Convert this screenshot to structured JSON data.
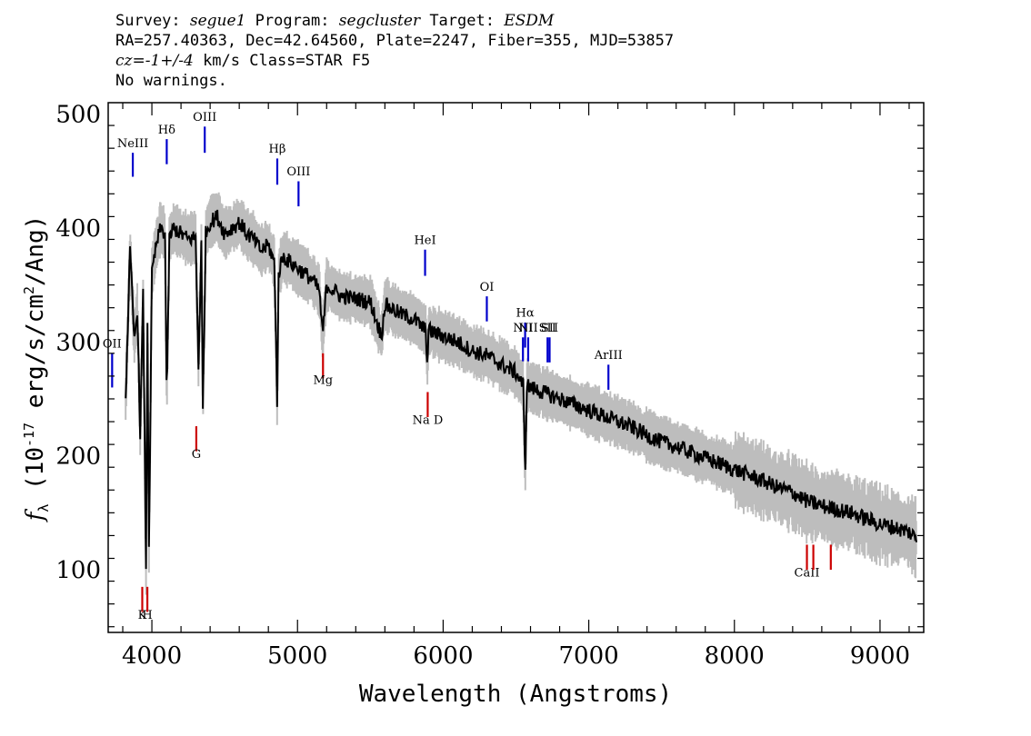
{
  "header": {
    "line1": {
      "survey_label": "Survey: ",
      "survey": "segue1",
      "program_label": " Program: ",
      "program": "segcluster",
      "target_label": " Target: ",
      "target": "ESDM"
    },
    "line2": "RA=257.40363, Dec=42.64560, Plate=2247, Fiber=355, MJD=53857",
    "line3": {
      "cz_value": "cz=-1+/-4",
      "rest": " km/s Class=STAR F5"
    },
    "line4": "No warnings."
  },
  "chart_data": {
    "type": "line",
    "title": "",
    "xlabel": "Wavelength (Angstroms)",
    "ylabel": "f_λ (10^-17 erg/s/cm^2/Ang)",
    "xlim": [
      3700,
      9300
    ],
    "ylim": [
      45,
      510
    ],
    "xticks": [
      4000,
      5000,
      6000,
      7000,
      8000,
      9000
    ],
    "yticks": [
      100,
      200,
      300,
      400,
      500
    ],
    "grid": false,
    "series": [
      {
        "role": "smoothed",
        "color": "#000000",
        "x": [
          3820,
          3850,
          3880,
          3900,
          3920,
          3940,
          3960,
          3970,
          3980,
          4000,
          4030,
          4060,
          4090,
          4102,
          4120,
          4150,
          4200,
          4250,
          4300,
          4320,
          4340,
          4350,
          4370,
          4400,
          4450,
          4500,
          4550,
          4600,
          4650,
          4700,
          4750,
          4800,
          4840,
          4855,
          4861,
          4870,
          4900,
          4950,
          5000,
          5050,
          5100,
          5150,
          5172,
          5200,
          5300,
          5400,
          5500,
          5577,
          5600,
          5700,
          5800,
          5880,
          5893,
          5900,
          6000,
          6100,
          6200,
          6300,
          6400,
          6500,
          6550,
          6563,
          6575,
          6600,
          6700,
          6800,
          6900,
          7000,
          7100,
          7200,
          7300,
          7400,
          7500,
          7600,
          7700,
          7800,
          7900,
          8000,
          8100,
          8200,
          8300,
          8400,
          8500,
          8600,
          8700,
          8800,
          8900,
          9000,
          9100,
          9200,
          9250
        ],
        "y": [
          250,
          380,
          300,
          330,
          220,
          340,
          100,
          320,
          120,
          360,
          385,
          400,
          395,
          245,
          390,
          400,
          395,
          390,
          392,
          280,
          385,
          240,
          395,
          405,
          410,
          395,
          400,
          405,
          395,
          390,
          380,
          385,
          370,
          290,
          235,
          360,
          375,
          370,
          365,
          360,
          355,
          345,
          305,
          350,
          340,
          338,
          335,
          305,
          333,
          325,
          320,
          310,
          280,
          310,
          305,
          300,
          292,
          288,
          280,
          273,
          262,
          180,
          262,
          260,
          255,
          250,
          245,
          240,
          235,
          230,
          225,
          218,
          212,
          208,
          203,
          198,
          193,
          188,
          183,
          178,
          172,
          168,
          160,
          156,
          153,
          150,
          145,
          140,
          137,
          133,
          128
        ]
      }
    ],
    "line_markers": [
      {
        "label": "OII",
        "x": 3727,
        "color": "#0000cc",
        "y_top": 290,
        "y_bottom": 260,
        "label_y": 295
      },
      {
        "label": "NeIII",
        "x": 3869,
        "color": "#0000cc",
        "y_top": 466,
        "y_bottom": 445,
        "label_y": 471
      },
      {
        "label": "Hδ",
        "x": 4102,
        "color": "#0000cc",
        "y_top": 478,
        "y_bottom": 456,
        "label_y": 483
      },
      {
        "label": "OIII",
        "x": 4363,
        "color": "#0000cc",
        "y_top": 489,
        "y_bottom": 466,
        "label_y": 494
      },
      {
        "label": "Hβ",
        "x": 4861,
        "color": "#0000cc",
        "y_top": 461,
        "y_bottom": 438,
        "label_y": 466
      },
      {
        "label": "OIII",
        "x": 5007,
        "color": "#0000cc",
        "y_top": 441,
        "y_bottom": 419,
        "label_y": 446
      },
      {
        "label": "HeI",
        "x": 5876,
        "color": "#0000cc",
        "y_top": 381,
        "y_bottom": 358,
        "label_y": 386
      },
      {
        "label": "OI",
        "x": 6300,
        "color": "#0000cc",
        "y_top": 340,
        "y_bottom": 318,
        "label_y": 345
      },
      {
        "label": "NII",
        "x": 6548,
        "color": "#0000cc",
        "y_top": 304,
        "y_bottom": 283,
        "label_y": 309
      },
      {
        "label": "Hα",
        "x": 6563,
        "color": "#0000cc",
        "y_top": 317,
        "y_bottom": 295,
        "label_y": 322
      },
      {
        "label": "NII",
        "x": 6584,
        "color": "#0000cc",
        "y_top": 304,
        "y_bottom": 283,
        "label_y": 309
      },
      {
        "label": "SII",
        "x": 6717,
        "color": "#0000cc",
        "y_top": 304,
        "y_bottom": 282,
        "label_y": 309
      },
      {
        "label": "SII",
        "x": 6731,
        "color": "#0000cc",
        "y_top": 304,
        "y_bottom": 282,
        "label_y": 309
      },
      {
        "label": "ArIII",
        "x": 7135,
        "color": "#0000cc",
        "y_top": 280,
        "y_bottom": 258,
        "label_y": 285
      },
      {
        "label": "G",
        "x": 4305,
        "color": "#cc0000",
        "y_top": 226,
        "y_bottom": 204,
        "label_y": 198
      },
      {
        "label": "Mg",
        "x": 5175,
        "color": "#cc0000",
        "y_top": 290,
        "y_bottom": 268,
        "label_y": 263
      },
      {
        "label": "Na D",
        "x": 5894,
        "color": "#cc0000",
        "y_top": 256,
        "y_bottom": 234,
        "label_y": 228
      },
      {
        "label": "K",
        "x": 3934,
        "color": "#cc0000",
        "y_top": 85,
        "y_bottom": 63,
        "label_y": 57
      },
      {
        "label": "H",
        "x": 3969,
        "color": "#cc0000",
        "y_top": 85,
        "y_bottom": 63,
        "label_y": 57
      },
      {
        "label": "CaII",
        "x": 8498,
        "color": "#cc0000",
        "y_top": 122,
        "y_bottom": 100,
        "label_y": 94
      },
      {
        "label": "",
        "x": 8542,
        "color": "#cc0000",
        "y_top": 122,
        "y_bottom": 100,
        "label_y": 94
      },
      {
        "label": "",
        "x": 8662,
        "color": "#cc0000",
        "y_top": 122,
        "y_bottom": 100,
        "label_y": 94
      }
    ],
    "noise_color": "#bdbdbd"
  }
}
